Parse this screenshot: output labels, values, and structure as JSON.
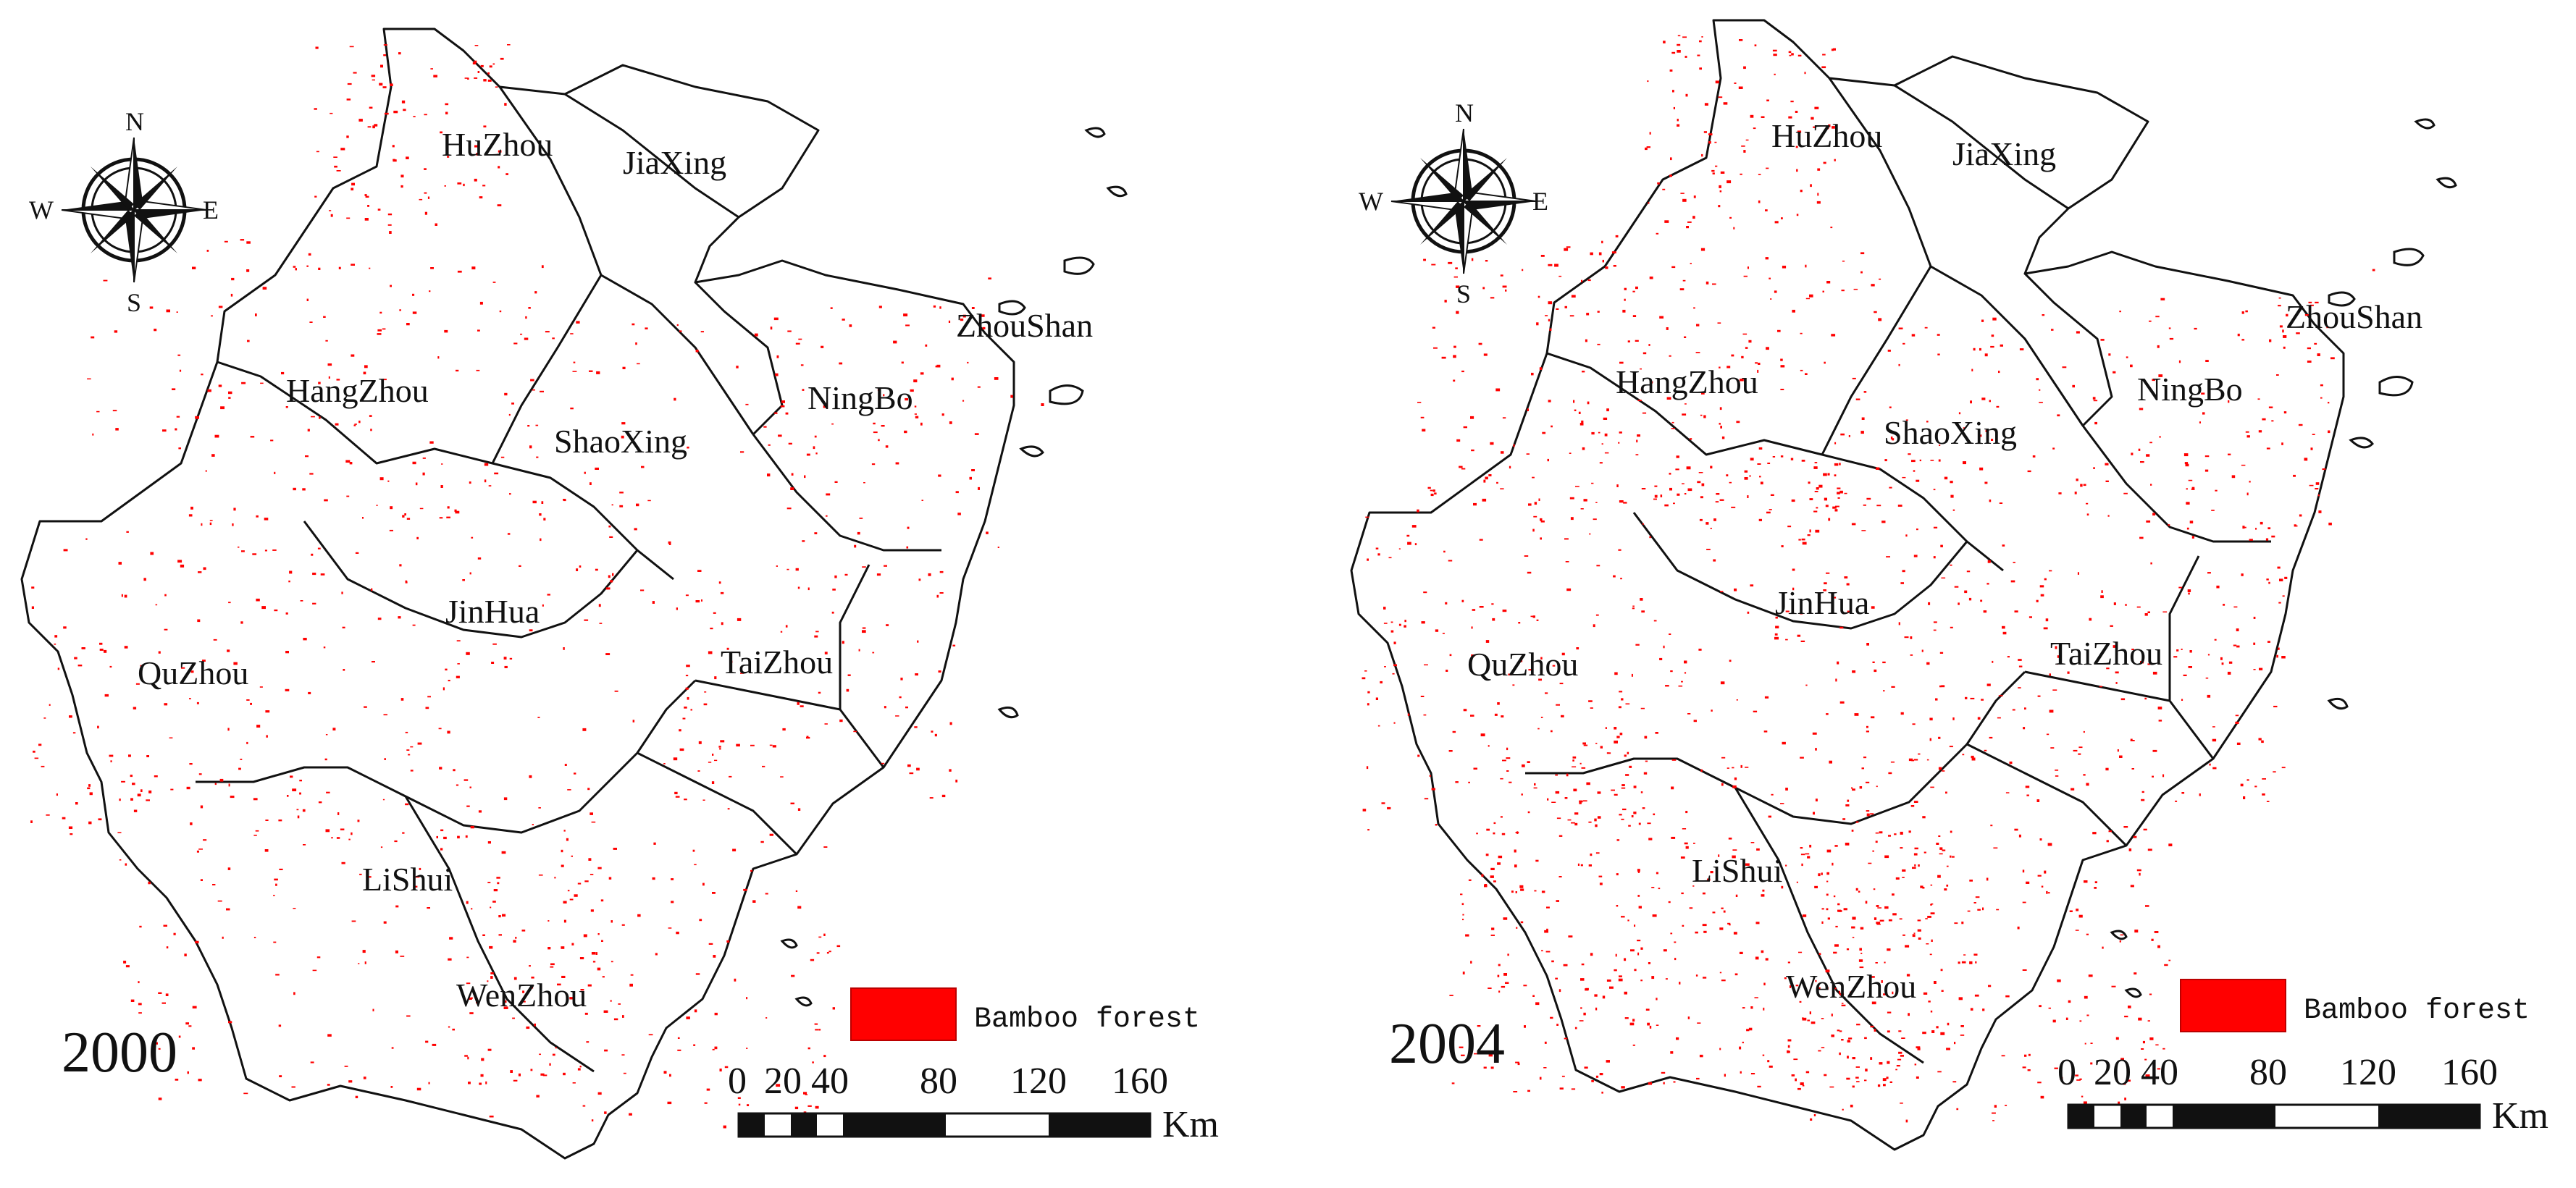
{
  "maps": [
    {
      "year": "2000",
      "regions": [
        {
          "name": "HuZhou",
          "density": 0.55
        },
        {
          "name": "JiaXing",
          "density": 0.0
        },
        {
          "name": "HangZhou",
          "density": 0.25
        },
        {
          "name": "ShaoXing",
          "density": 0.18
        },
        {
          "name": "NingBo",
          "density": 0.35
        },
        {
          "name": "ZhouShan",
          "density": 0.05
        },
        {
          "name": "JinHua",
          "density": 0.2
        },
        {
          "name": "QuZhou",
          "density": 0.3
        },
        {
          "name": "TaiZhou",
          "density": 0.35
        },
        {
          "name": "LiShui",
          "density": 0.25
        },
        {
          "name": "WenZhou",
          "density": 0.3
        }
      ]
    },
    {
      "year": "2004",
      "regions": [
        {
          "name": "HuZhou",
          "density": 0.6
        },
        {
          "name": "JiaXing",
          "density": 0.0
        },
        {
          "name": "HangZhou",
          "density": 0.45
        },
        {
          "name": "ShaoXing",
          "density": 0.3
        },
        {
          "name": "NingBo",
          "density": 0.45
        },
        {
          "name": "ZhouShan",
          "density": 0.05
        },
        {
          "name": "JinHua",
          "density": 0.4
        },
        {
          "name": "QuZhou",
          "density": 0.4
        },
        {
          "name": "TaiZhou",
          "density": 0.45
        },
        {
          "name": "LiShui",
          "density": 0.55
        },
        {
          "name": "WenZhou",
          "density": 0.45
        }
      ]
    }
  ],
  "compass": {
    "north": "N",
    "south": "S",
    "east": "E",
    "west": "W"
  },
  "legend": {
    "label": "Bamboo forest",
    "color": "#ff0000"
  },
  "scale_bar": {
    "ticks": [
      "0",
      "20",
      "40",
      "80",
      "120",
      "160"
    ],
    "unit": "Km"
  },
  "colors": {
    "bamboo": "#ff0000",
    "boundary": "#111111"
  }
}
